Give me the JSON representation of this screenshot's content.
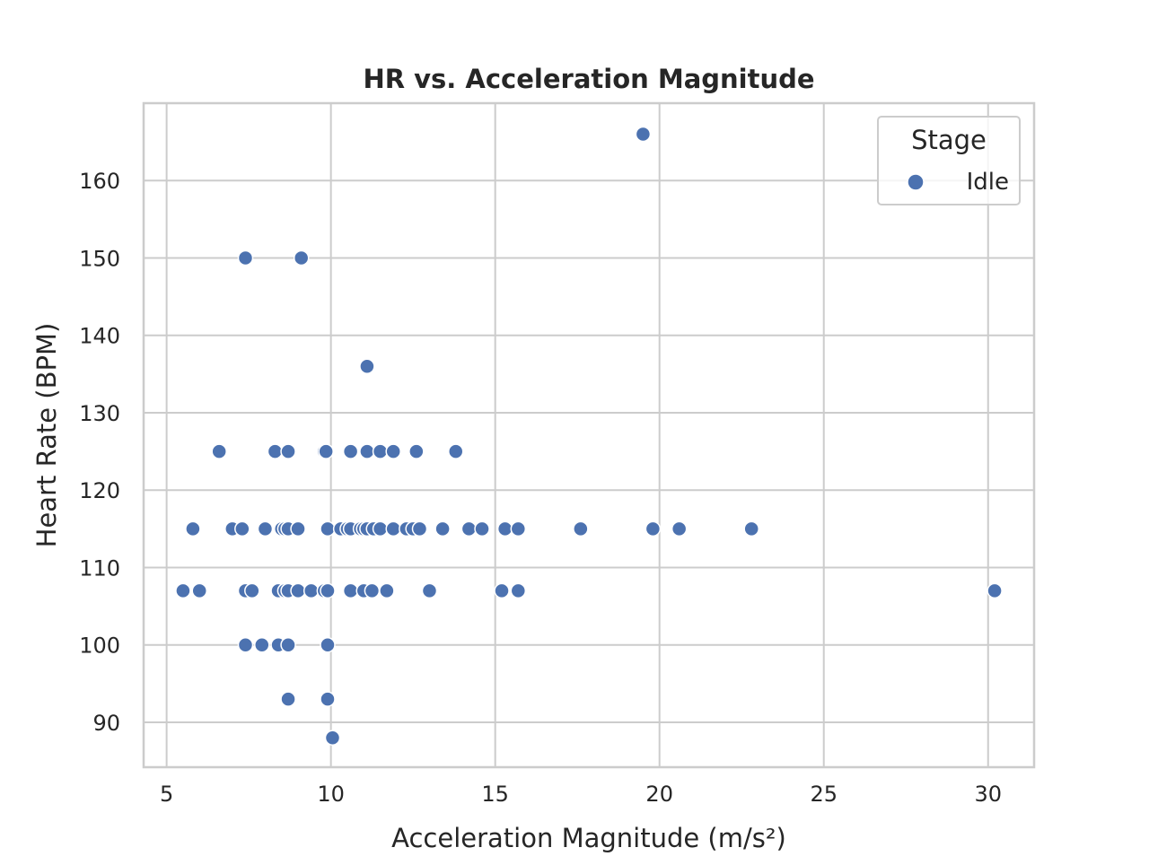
{
  "chart_data": {
    "type": "scatter",
    "title": "HR vs. Acceleration Magnitude",
    "xlabel": "Acceleration Magnitude (m/s²)",
    "ylabel": "Heart Rate (BPM)",
    "xlim": [
      4.3,
      31.4
    ],
    "ylim": [
      84.2,
      170.0
    ],
    "xticks": [
      5,
      10,
      15,
      20,
      25,
      30
    ],
    "yticks": [
      90,
      100,
      110,
      120,
      130,
      140,
      150,
      160
    ],
    "grid": true,
    "legend": {
      "title": "Stage",
      "placement": "top-right",
      "entries": [
        "Idle"
      ]
    },
    "colors": {
      "Idle": "#4c72b0"
    },
    "series": [
      {
        "name": "Idle",
        "points": [
          [
            19.5,
            166
          ],
          [
            7.4,
            150
          ],
          [
            9.1,
            150
          ],
          [
            11.1,
            136
          ],
          [
            6.6,
            125
          ],
          [
            8.3,
            125
          ],
          [
            8.7,
            125
          ],
          [
            9.8,
            125
          ],
          [
            9.85,
            125
          ],
          [
            10.6,
            125
          ],
          [
            11.1,
            125
          ],
          [
            11.5,
            125
          ],
          [
            11.9,
            125
          ],
          [
            12.6,
            125
          ],
          [
            13.8,
            125
          ],
          [
            5.8,
            115
          ],
          [
            7.0,
            115
          ],
          [
            7.3,
            115
          ],
          [
            8.0,
            115
          ],
          [
            8.5,
            115
          ],
          [
            8.6,
            115
          ],
          [
            8.7,
            115
          ],
          [
            9.0,
            115
          ],
          [
            9.9,
            115
          ],
          [
            10.3,
            115
          ],
          [
            10.5,
            115
          ],
          [
            10.6,
            115
          ],
          [
            10.9,
            115
          ],
          [
            11.0,
            115
          ],
          [
            11.1,
            115
          ],
          [
            11.3,
            115
          ],
          [
            11.5,
            115
          ],
          [
            11.9,
            115
          ],
          [
            12.3,
            115
          ],
          [
            12.5,
            115
          ],
          [
            12.7,
            115
          ],
          [
            13.4,
            115
          ],
          [
            14.2,
            115
          ],
          [
            14.6,
            115
          ],
          [
            15.3,
            115
          ],
          [
            15.7,
            115
          ],
          [
            17.6,
            115
          ],
          [
            19.8,
            115
          ],
          [
            20.6,
            115
          ],
          [
            22.8,
            115
          ],
          [
            5.5,
            107
          ],
          [
            6.0,
            107
          ],
          [
            7.4,
            107
          ],
          [
            7.6,
            107
          ],
          [
            8.4,
            107
          ],
          [
            8.6,
            107
          ],
          [
            8.7,
            107
          ],
          [
            9.0,
            107
          ],
          [
            9.4,
            107
          ],
          [
            9.8,
            107
          ],
          [
            9.9,
            107
          ],
          [
            10.6,
            107
          ],
          [
            11.0,
            107
          ],
          [
            11.25,
            107
          ],
          [
            11.7,
            107
          ],
          [
            13.0,
            107
          ],
          [
            15.2,
            107
          ],
          [
            15.7,
            107
          ],
          [
            30.2,
            107
          ],
          [
            7.4,
            100
          ],
          [
            7.9,
            100
          ],
          [
            8.4,
            100
          ],
          [
            8.7,
            100
          ],
          [
            9.9,
            100
          ],
          [
            8.7,
            93
          ],
          [
            9.9,
            93
          ],
          [
            10.05,
            88
          ]
        ]
      }
    ]
  }
}
